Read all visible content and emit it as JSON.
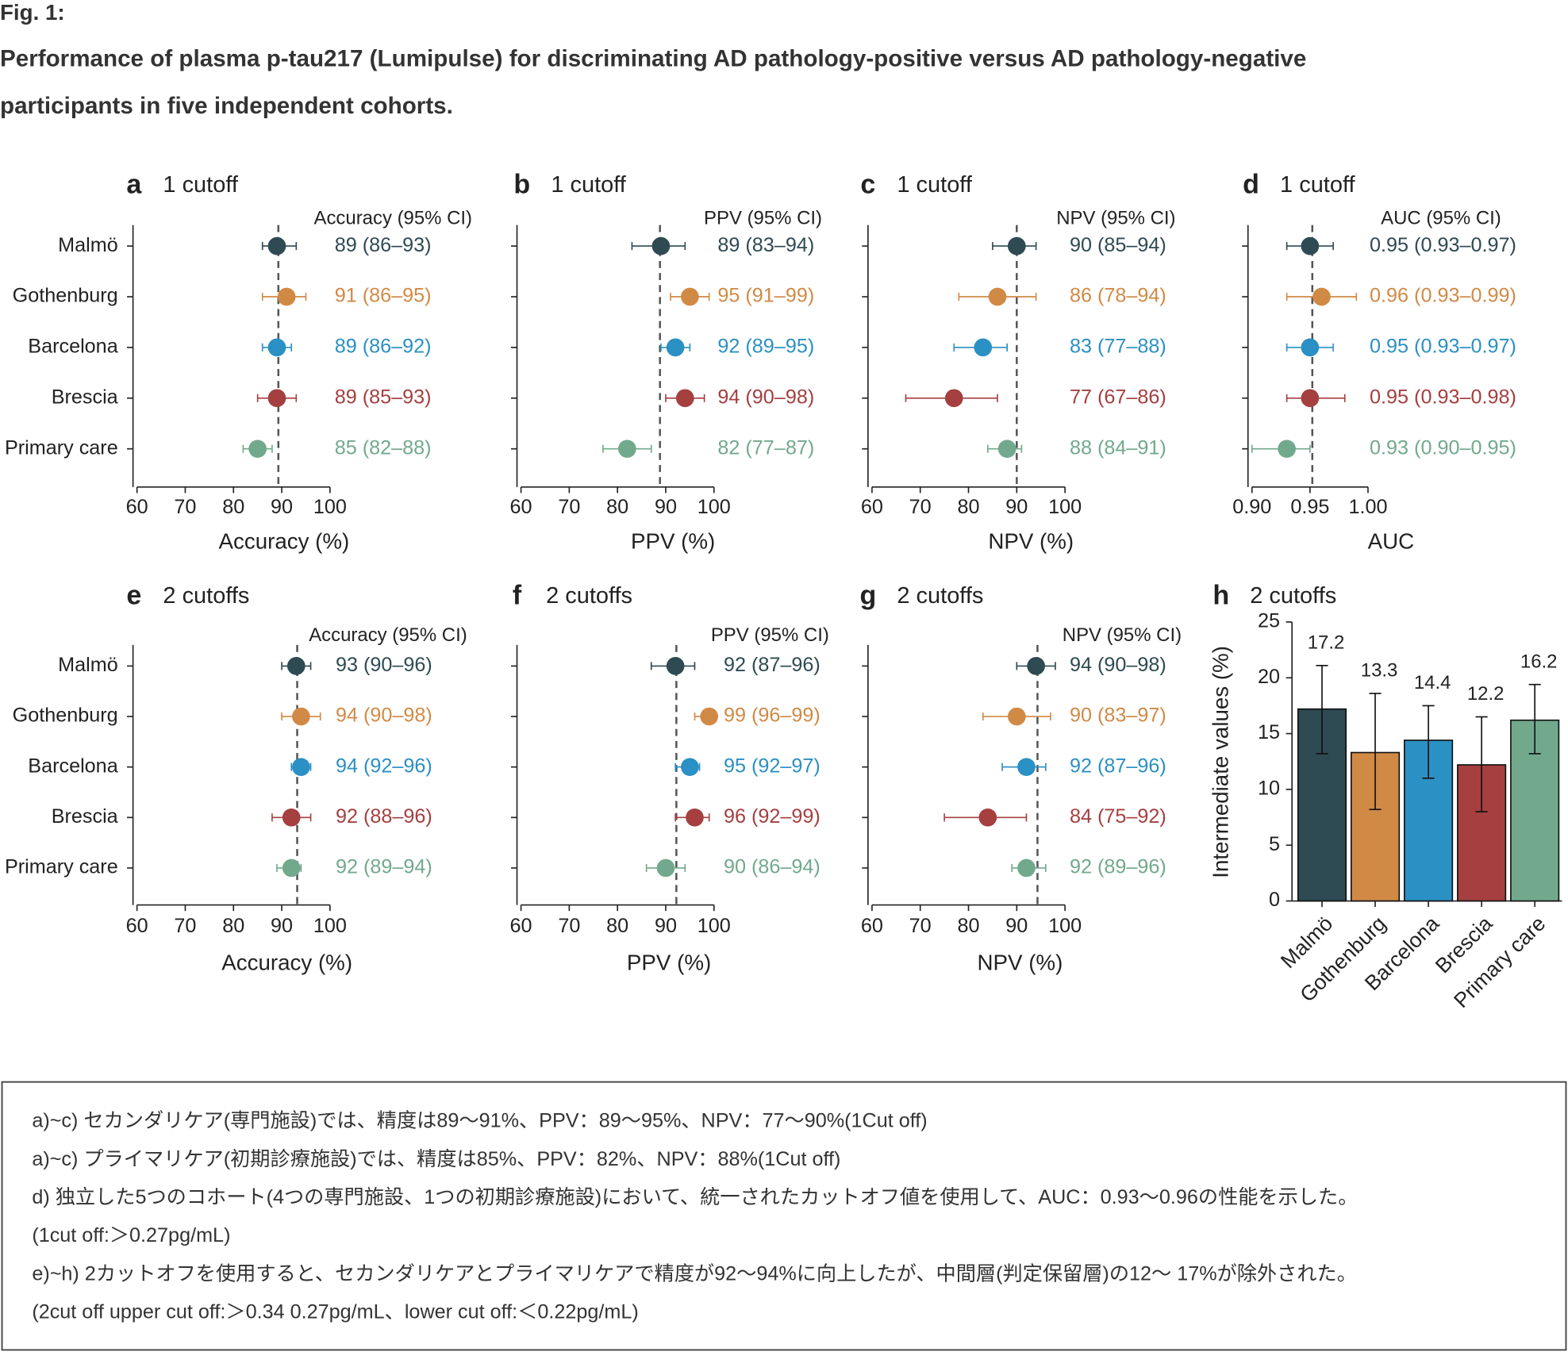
{
  "figure": {
    "label": "Fig. 1:",
    "title_lines": [
      "Performance of plasma p-tau217 (Lumipulse) for discriminating AD pathology-positive versus AD pathology-negative",
      "participants in five independent cohorts."
    ]
  },
  "chart_data": [
    {
      "type": "forest",
      "panel": "a",
      "title": "1 cutoff",
      "column_header": "Accuracy (95% CI)",
      "xlabel": "Accuracy (%)",
      "categories": [
        "Malmö",
        "Gothenburg",
        "Barcelona",
        "Brescia",
        "Primary care"
      ],
      "colors": [
        "#2e4a53",
        "#d18a45",
        "#2b90c3",
        "#a53f40",
        "#72a98c"
      ],
      "values": [
        89,
        91,
        89,
        89,
        85
      ],
      "ci_low": [
        86,
        86,
        86,
        85,
        82
      ],
      "ci_high": [
        93,
        95,
        92,
        93,
        88
      ],
      "value_labels": [
        "89 (86–93)",
        "91 (86–95)",
        "89 (86–92)",
        "89 (85–93)",
        "85 (82–88)"
      ],
      "reference": 89.3,
      "xlim": [
        60,
        100
      ],
      "xticks": [
        60,
        70,
        80,
        90,
        100
      ]
    },
    {
      "type": "forest",
      "panel": "b",
      "title": "1 cutoff",
      "column_header": "PPV (95% CI)",
      "xlabel": "PPV (%)",
      "colors": [
        "#2e4a53",
        "#d18a45",
        "#2b90c3",
        "#a53f40",
        "#72a98c"
      ],
      "values": [
        89,
        95,
        92,
        94,
        82
      ],
      "ci_low": [
        83,
        91,
        89,
        90,
        77
      ],
      "ci_high": [
        94,
        99,
        95,
        98,
        87
      ],
      "value_labels": [
        "89 (83–94)",
        "95 (91–99)",
        "92 (89–95)",
        "94 (90–98)",
        "82 (77–87)"
      ],
      "reference": 88.8,
      "xlim": [
        60,
        100
      ],
      "xticks": [
        60,
        70,
        80,
        90,
        100
      ]
    },
    {
      "type": "forest",
      "panel": "c",
      "title": "1 cutoff",
      "column_header": "NPV (95% CI)",
      "xlabel": "NPV (%)",
      "colors": [
        "#2e4a53",
        "#d18a45",
        "#2b90c3",
        "#a53f40",
        "#72a98c"
      ],
      "values": [
        90,
        86,
        83,
        77,
        88
      ],
      "ci_low": [
        85,
        78,
        77,
        67,
        84
      ],
      "ci_high": [
        94,
        94,
        88,
        86,
        91
      ],
      "value_labels": [
        "90 (85–94)",
        "86 (78–94)",
        "83 (77–88)",
        "77 (67–86)",
        "88 (84–91)"
      ],
      "reference": 90,
      "xlim": [
        60,
        100
      ],
      "xticks": [
        60,
        70,
        80,
        90,
        100
      ]
    },
    {
      "type": "forest",
      "panel": "d",
      "title": "1 cutoff",
      "column_header": "AUC (95% CI)",
      "xlabel": "AUC",
      "colors": [
        "#2e4a53",
        "#d18a45",
        "#2b90c3",
        "#a53f40",
        "#72a98c"
      ],
      "values": [
        0.95,
        0.96,
        0.95,
        0.95,
        0.93
      ],
      "ci_low": [
        0.93,
        0.93,
        0.93,
        0.93,
        0.9
      ],
      "ci_high": [
        0.97,
        0.99,
        0.97,
        0.98,
        0.95
      ],
      "value_labels": [
        "0.95 (0.93–0.97)",
        "0.96 (0.93–0.99)",
        "0.95 (0.93–0.97)",
        "0.95 (0.93–0.98)",
        "0.93 (0.90–0.95)"
      ],
      "reference": 0.952,
      "xlim": [
        0.9,
        1.0
      ],
      "xticks": [
        {
          "value": 0.9,
          "label": "0.90"
        },
        {
          "value": 0.95,
          "label": "0.95"
        },
        {
          "value": 1.0,
          "label": "1.00"
        }
      ]
    },
    {
      "type": "forest",
      "panel": "e",
      "title": "2 cutoffs",
      "column_header": "Accuracy (95% CI)",
      "xlabel": "Accuracy (%)",
      "categories": [
        "Malmö",
        "Gothenburg",
        "Barcelona",
        "Brescia",
        "Primary care"
      ],
      "colors": [
        "#2e4a53",
        "#d18a45",
        "#2b90c3",
        "#a53f40",
        "#72a98c"
      ],
      "values": [
        93,
        94,
        94,
        92,
        92
      ],
      "ci_low": [
        90,
        90,
        92,
        88,
        89
      ],
      "ci_high": [
        96,
        98,
        96,
        96,
        94
      ],
      "value_labels": [
        "93 (90–96)",
        "94 (90–98)",
        "94 (92–96)",
        "92 (88–96)",
        "92 (89–94)"
      ],
      "reference": 93.2,
      "xlim": [
        60,
        100
      ],
      "xticks": [
        60,
        70,
        80,
        90,
        100
      ]
    },
    {
      "type": "forest",
      "panel": "f",
      "title": "2 cutoffs",
      "column_header": "PPV (95% CI)",
      "xlabel": "PPV (%)",
      "colors": [
        "#2e4a53",
        "#d18a45",
        "#2b90c3",
        "#a53f40",
        "#72a98c"
      ],
      "values": [
        92,
        99,
        95,
        96,
        90
      ],
      "ci_low": [
        87,
        96,
        92,
        92,
        86
      ],
      "ci_high": [
        96,
        99,
        97,
        99,
        94
      ],
      "value_labels": [
        "92 (87–96)",
        "99 (96–99)",
        "95 (92–97)",
        "96 (92–99)",
        "90 (86–94)"
      ],
      "reference": 92.2,
      "xlim": [
        60,
        100
      ],
      "xticks": [
        60,
        70,
        80,
        90,
        100
      ]
    },
    {
      "type": "forest",
      "panel": "g",
      "title": "2 cutoffs",
      "column_header": "NPV (95% CI)",
      "xlabel": "NPV (%)",
      "colors": [
        "#2e4a53",
        "#d18a45",
        "#2b90c3",
        "#a53f40",
        "#72a98c"
      ],
      "values": [
        94,
        90,
        92,
        84,
        92
      ],
      "ci_low": [
        90,
        83,
        87,
        75,
        89
      ],
      "ci_high": [
        98,
        97,
        96,
        92,
        96
      ],
      "value_labels": [
        "94 (90–98)",
        "90 (83–97)",
        "92 (87–96)",
        "84 (75–92)",
        "92 (89–96)"
      ],
      "reference": 94.3,
      "xlim": [
        60,
        100
      ],
      "xticks": [
        60,
        70,
        80,
        90,
        100
      ]
    },
    {
      "type": "bar",
      "panel": "h",
      "title": "2 cutoffs",
      "ylabel": "Intermediate values (%)",
      "categories": [
        "Malmö",
        "Gothenburg",
        "Barcelona",
        "Brescia",
        "Primary care"
      ],
      "colors": [
        "#2e4a53",
        "#d18a45",
        "#2b90c3",
        "#a53f40",
        "#72a98c"
      ],
      "values": [
        17.2,
        13.3,
        14.4,
        12.2,
        16.2
      ],
      "error_low": [
        13.2,
        8.2,
        11,
        8,
        13.2
      ],
      "error_high": [
        21.1,
        18.6,
        17.5,
        16.5,
        19.4
      ],
      "ylim": [
        0,
        25
      ],
      "yticks": [
        0,
        5,
        10,
        15,
        20,
        25
      ]
    }
  ],
  "notes": [
    "a)~c) セカンダリケア(専門施設)では、精度は89～91%、PPV：89～95%、NPV：77～90%(1Cut off)",
    "a)~c) プライマリケア(初期診療施設)では、精度は85%、PPV：82%、NPV：88%(1Cut off)",
    "d) 独立した5つのコホート(4つの専門施設、1つの初期診療施設)において、統一されたカットオフ値を使用して、AUC：0.93～0.96の性能を示した。",
    "(1cut off:＞0.27pg/mL)",
    "e)~h) 2カットオフを使用すると、セカンダリケアとプライマリケアで精度が92～94%に向上したが、中間層(判定保留層)の12～ 17%が除外された。",
    "(2cut off upper cut off:＞0.34 0.27pg/mL、lower cut off:＜0.22pg/mL)"
  ]
}
